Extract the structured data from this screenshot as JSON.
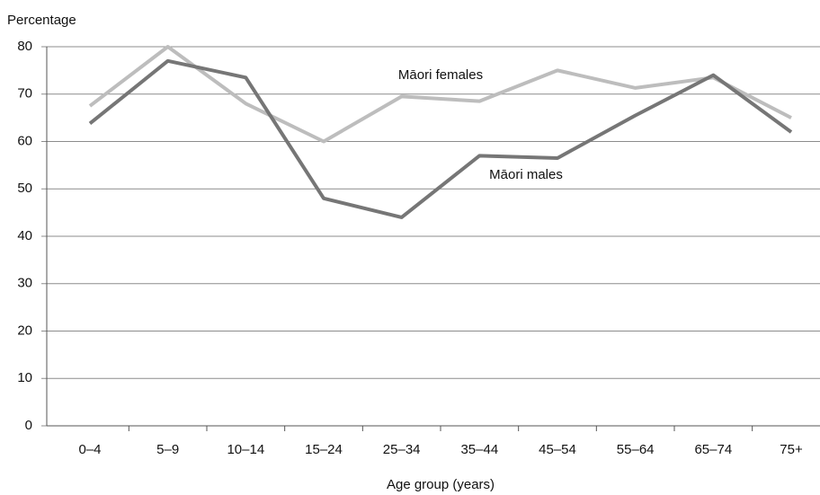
{
  "chart_data": {
    "type": "line",
    "y_label": "Percentage",
    "x_label": "Age group (years)",
    "categories": [
      "0–4",
      "5–9",
      "10–14",
      "15–24",
      "25–34",
      "35–44",
      "45–54",
      "55–64",
      "65–74",
      "75+"
    ],
    "series": [
      {
        "name": "Māori females",
        "color": "#bdbdbd",
        "values": [
          67.5,
          80,
          68,
          60,
          69.5,
          68.5,
          75,
          71.3,
          73.5,
          65
        ]
      },
      {
        "name": "Māori males",
        "color": "#767676",
        "values": [
          63.8,
          77,
          73.5,
          48,
          44,
          57,
          56.5,
          65.5,
          74,
          62
        ]
      }
    ],
    "ylim": [
      0,
      80
    ],
    "yticks": [
      0,
      10,
      20,
      30,
      40,
      50,
      60,
      70,
      80
    ],
    "grid": true
  }
}
